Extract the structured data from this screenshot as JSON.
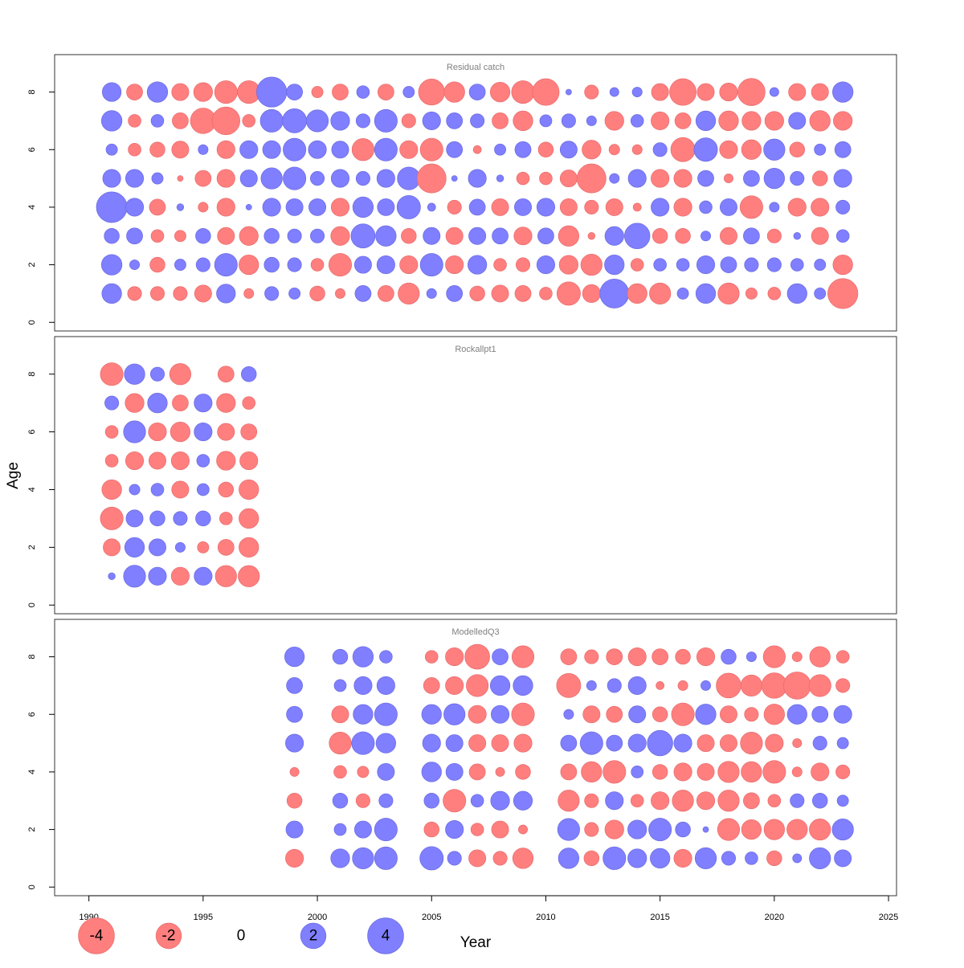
{
  "chart_data": {
    "type": "bubble",
    "xlabel": "Year",
    "ylabel": "Age",
    "xlim": [
      1990,
      2025
    ],
    "ylim": [
      0,
      9
    ],
    "x_ticks": [
      1990,
      1995,
      2000,
      2005,
      2010,
      2015,
      2020,
      2025
    ],
    "y_ticks": [
      0,
      2,
      4,
      6,
      8
    ],
    "ages": [
      1,
      2,
      3,
      4,
      5,
      6,
      7,
      8
    ],
    "colors": {
      "negative": "#ff7f7f",
      "positive": "#7f7fff",
      "negative_stroke": "#e86a6a",
      "positive_stroke": "#6a6ae0"
    },
    "legend": [
      {
        "label": "-4",
        "value": -4
      },
      {
        "label": "-2",
        "value": -2
      },
      {
        "label": "0",
        "value": 0
      },
      {
        "label": "2",
        "value": 2
      },
      {
        "label": "4",
        "value": 4
      }
    ],
    "panels": [
      {
        "title": "Residual catch",
        "years": [
          1991,
          1992,
          1993,
          1994,
          1995,
          1996,
          1997,
          1998,
          1999,
          2000,
          2001,
          2002,
          2003,
          2004,
          2005,
          2006,
          2007,
          2008,
          2009,
          2010,
          2011,
          2012,
          2013,
          2014,
          2015,
          2016,
          2017,
          2018,
          2019,
          2020,
          2021,
          2022,
          2023
        ],
        "values": {
          "8": [
            1.1,
            -0.8,
            1.3,
            -0.9,
            -1.1,
            -1.6,
            -1.6,
            2.8,
            0.8,
            -0.4,
            -0.8,
            0.5,
            -0.8,
            0.4,
            -2.1,
            -1.3,
            0.8,
            -1.2,
            -1.6,
            -2.2,
            0.1,
            -0.6,
            0.25,
            0.3,
            -0.9,
            -2.2,
            -0.9,
            -1,
            -2.3,
            0.25,
            -0.9,
            -0.9,
            1.3
          ],
          "7": [
            1.3,
            -0.5,
            0.5,
            -0.8,
            -2.0,
            -2.4,
            -0.5,
            1.6,
            1.8,
            1.5,
            1.1,
            0.6,
            1.6,
            -0.6,
            1.0,
            0.8,
            0.6,
            -0.8,
            -1.2,
            0.45,
            0.6,
            0.3,
            -1.1,
            0.5,
            -1.0,
            -0.8,
            1.2,
            -1.2,
            -1.1,
            -1.1,
            0.9,
            -1.3,
            -1.1
          ],
          "6": [
            0.4,
            -0.5,
            -0.7,
            -0.9,
            0.3,
            -1.0,
            1.0,
            1.0,
            1.6,
            1.0,
            0.9,
            -1.5,
            1.6,
            -1.0,
            -1.6,
            0.8,
            -0.2,
            0.4,
            0.8,
            -0.7,
            0.9,
            -1.1,
            -0.35,
            -0.3,
            0.6,
            -1.8,
            1.7,
            -1.0,
            -1.2,
            1.4,
            -0.7,
            0.4,
            0.8
          ],
          "5": [
            1.0,
            1.0,
            0.4,
            -0.1,
            -0.8,
            -1.0,
            0.9,
            1.4,
            1.6,
            0.6,
            1.0,
            0.6,
            1.0,
            1.6,
            -2.6,
            0.1,
            1.0,
            0.15,
            -0.5,
            -0.5,
            -0.9,
            -2.6,
            0.3,
            1.0,
            -1.0,
            -1.0,
            0.8,
            -0.25,
            0.8,
            1.3,
            0.6,
            -0.7,
            1.0
          ],
          "4": [
            2.9,
            1.0,
            -0.8,
            0.15,
            -0.3,
            -1.0,
            0.1,
            1.0,
            0.9,
            0.9,
            -1.0,
            1.3,
            0.9,
            1.7,
            0.2,
            -0.6,
            0.8,
            -0.9,
            0.9,
            1.0,
            -0.9,
            -0.6,
            -0.9,
            -0.2,
            1.0,
            -1.0,
            0.5,
            0.9,
            -1.6,
            0.3,
            -1.0,
            -1.0,
            0.6
          ],
          "3": [
            0.7,
            0.8,
            -0.5,
            -0.4,
            0.7,
            -0.9,
            -1.1,
            0.7,
            0.6,
            0.6,
            -1.1,
            1.8,
            1.3,
            -0.7,
            0.9,
            -0.9,
            0.9,
            0.8,
            -1.0,
            0.8,
            -1.3,
            -0.15,
            1.1,
            2.0,
            -0.7,
            -0.7,
            0.3,
            -0.9,
            0.8,
            -0.6,
            0.15,
            -0.9,
            0.5
          ],
          "2": [
            1.3,
            0.3,
            -0.7,
            0.4,
            0.6,
            1.6,
            -1.2,
            0.7,
            0.6,
            -0.5,
            -1.6,
            0.9,
            1.0,
            -1.0,
            1.6,
            -1.0,
            1.1,
            -0.5,
            -0.6,
            1.0,
            -1.1,
            -1.4,
            1.2,
            -0.5,
            0.5,
            0.5,
            1.0,
            0.8,
            0.6,
            0.6,
            0.5,
            0.4,
            -1.2
          ],
          "1": [
            1.2,
            -0.6,
            -0.6,
            -0.6,
            -0.9,
            1.1,
            -0.3,
            0.6,
            0.4,
            -0.7,
            -0.3,
            0.8,
            -0.8,
            -1.4,
            0.3,
            0.8,
            -0.7,
            -0.9,
            -0.8,
            -0.5,
            -1.7,
            -1.0,
            2.6,
            -1.2,
            -1.4,
            0.4,
            1.2,
            -1.4,
            -0.4,
            -0.5,
            1.2,
            0.4,
            -2.8
          ]
        }
      },
      {
        "title": "Rockallpt1",
        "years": [
          1991,
          1992,
          1993,
          1994,
          1995,
          1996,
          1997
        ],
        "values": {
          "8": [
            -1.6,
            1.3,
            0.6,
            -1.4,
            null,
            -0.8,
            0.7
          ],
          "7": [
            0.6,
            -1.1,
            1.2,
            -0.8,
            1.0,
            -1.1,
            -0.5
          ],
          "6": [
            -0.5,
            1.5,
            -1.0,
            -1.2,
            1.0,
            -0.9,
            -0.8
          ],
          "5": [
            -0.5,
            -1.0,
            -0.9,
            -1.0,
            0.5,
            -1.1,
            -1.0
          ],
          "4": [
            -1.2,
            0.35,
            0.5,
            -0.9,
            0.45,
            -0.7,
            -1.2
          ],
          "3": [
            -1.6,
            0.9,
            0.7,
            0.6,
            0.7,
            -0.5,
            -1.2
          ],
          "2": [
            -0.9,
            1.2,
            0.9,
            0.3,
            -0.4,
            -0.8,
            -1.2
          ],
          "1": [
            0.15,
            1.5,
            1.0,
            -1.0,
            1.0,
            -1.4,
            -1.4
          ]
        }
      },
      {
        "title": "ModelledQ3",
        "years": [
          1999,
          2001,
          2002,
          2003,
          2005,
          2006,
          2007,
          2008,
          2009,
          2011,
          2012,
          2013,
          2014,
          2015,
          2016,
          2017,
          2018,
          2019,
          2020,
          2021,
          2022,
          2023
        ],
        "values": {
          "8": [
            1.2,
            0.7,
            1.3,
            0.5,
            -0.5,
            -1.0,
            -1.9,
            0.8,
            -1.5,
            -0.8,
            -0.6,
            -0.8,
            -1.0,
            -0.8,
            -0.7,
            -1.0,
            0.7,
            0.3,
            -1.5,
            -0.3,
            -1.3,
            -0.5
          ],
          "7": [
            0.8,
            0.45,
            1.0,
            1.0,
            -0.8,
            -1.0,
            -1.5,
            1.2,
            1.2,
            -1.8,
            0.3,
            0.6,
            1.0,
            -0.2,
            -0.3,
            0.3,
            -1.9,
            -1.4,
            -2.0,
            -2.3,
            -1.5,
            -0.6
          ],
          "6": [
            0.8,
            -0.9,
            1.2,
            1.6,
            1.2,
            1.4,
            -1.0,
            1.0,
            -1.6,
            0.3,
            -0.9,
            -0.8,
            0.9,
            -0.7,
            -1.6,
            1.3,
            -0.9,
            -0.6,
            -1.3,
            1.2,
            0.8,
            1.0
          ],
          "5": [
            1.0,
            -1.5,
            1.6,
            1.2,
            1.0,
            0.9,
            -0.9,
            -0.9,
            -1.0,
            0.8,
            1.6,
            0.8,
            1.0,
            2.0,
            1.0,
            -0.9,
            -0.9,
            -1.5,
            -1.0,
            -0.25,
            0.6,
            0.4
          ],
          "4": [
            -0.25,
            -0.5,
            -0.4,
            0.9,
            1.2,
            0.9,
            -0.8,
            -0.25,
            -0.7,
            -0.8,
            -1.3,
            -1.6,
            0.45,
            -0.7,
            -1.0,
            -0.9,
            -1.4,
            -1.3,
            -1.6,
            -0.3,
            -1.0,
            -0.6
          ],
          "3": [
            -0.7,
            0.7,
            -0.6,
            0.6,
            0.7,
            -1.6,
            0.5,
            1.1,
            1.1,
            -1.4,
            -0.6,
            1.0,
            -0.5,
            -1.0,
            -1.4,
            -1.0,
            -1.4,
            -0.8,
            -0.5,
            0.6,
            0.7,
            0.4
          ],
          "2": [
            0.9,
            0.45,
            0.9,
            1.6,
            -0.7,
            1.0,
            -0.5,
            -0.9,
            -0.25,
            1.5,
            -0.6,
            -1.1,
            1.1,
            1.6,
            0.7,
            0.1,
            -1.5,
            -1.2,
            -1.3,
            -1.3,
            -1.4,
            1.4
          ],
          "1": [
            -1.0,
            1.1,
            1.4,
            1.6,
            1.7,
            0.6,
            -0.9,
            -0.6,
            -1.3,
            1.3,
            -0.7,
            1.6,
            1.1,
            1.2,
            -1.0,
            1.4,
            0.6,
            0.5,
            -0.7,
            0.25,
            1.4,
            0.9
          ]
        }
      }
    ]
  }
}
